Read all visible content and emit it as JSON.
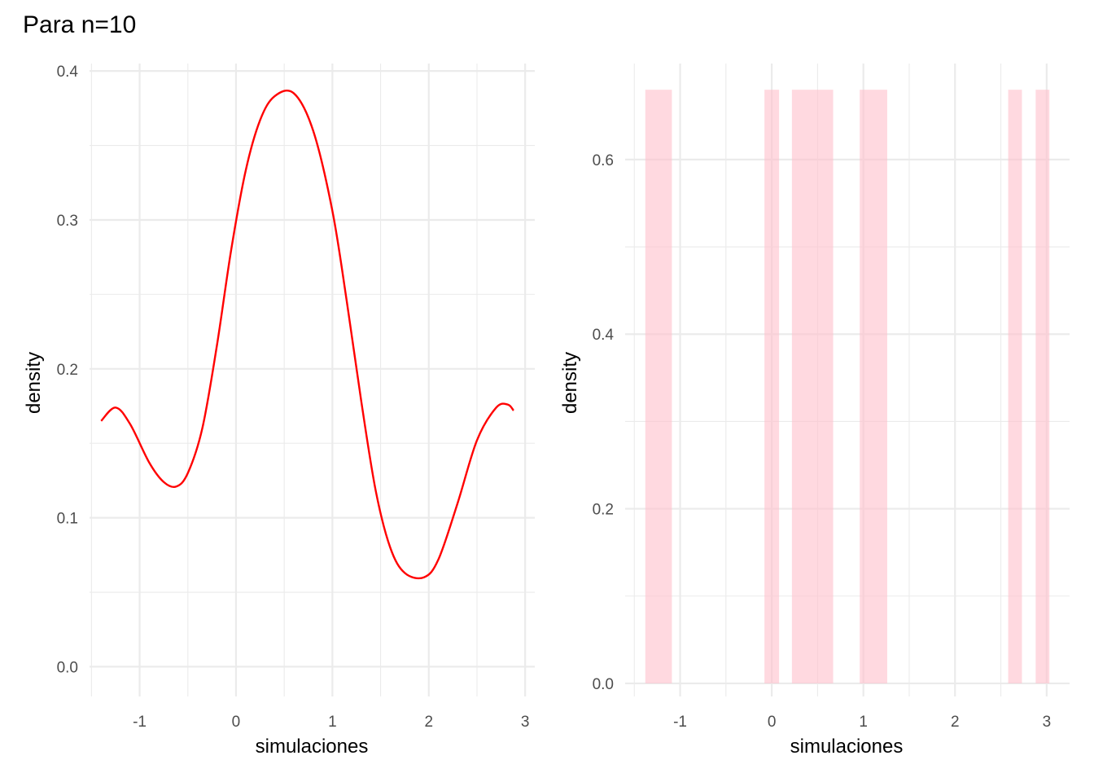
{
  "title": "Para n=10",
  "colors": {
    "density_line": "#ff0000",
    "histogram_fill": "#ffc0cb"
  },
  "chart_data": [
    {
      "type": "line",
      "xlabel": "simulaciones",
      "ylabel": "density",
      "xlim": [
        -1.52,
        3.1
      ],
      "ylim": [
        -0.02,
        0.405
      ],
      "x_major_ticks": [
        -1,
        0,
        1,
        2,
        3
      ],
      "x_minor_ticks": [
        -1.5,
        -0.5,
        0.5,
        1.5,
        2.5
      ],
      "y_major_ticks": [
        0.0,
        0.1,
        0.2,
        0.3,
        0.4
      ],
      "y_minor_ticks": [
        0.05,
        0.15,
        0.25,
        0.35
      ],
      "x_tick_labels": [
        "-1",
        "0",
        "1",
        "2",
        "3"
      ],
      "y_tick_labels": [
        "0.0",
        "0.1",
        "0.2",
        "0.3",
        "0.4"
      ],
      "grid": true,
      "series": [
        {
          "color": "#ff0000",
          "x": [
            -1.4,
            -1.25,
            -1.1,
            -0.9,
            -0.75,
            -0.62,
            -0.5,
            -0.35,
            -0.2,
            -0.05,
            0.1,
            0.25,
            0.4,
            0.6,
            0.8,
            1.0,
            1.15,
            1.3,
            1.45,
            1.6,
            1.75,
            1.95,
            2.1,
            2.3,
            2.5,
            2.7,
            2.82,
            2.88
          ],
          "y": [
            0.165,
            0.174,
            0.163,
            0.137,
            0.124,
            0.121,
            0.13,
            0.16,
            0.215,
            0.28,
            0.333,
            0.367,
            0.383,
            0.385,
            0.36,
            0.306,
            0.245,
            0.178,
            0.118,
            0.08,
            0.063,
            0.06,
            0.072,
            0.11,
            0.152,
            0.174,
            0.176,
            0.172
          ]
        }
      ]
    },
    {
      "type": "bar",
      "xlabel": "simulaciones",
      "ylabel": "density",
      "xlim": [
        -1.6,
        3.25
      ],
      "ylim": [
        -0.015,
        0.71
      ],
      "x_major_ticks": [
        -1,
        0,
        1,
        2,
        3
      ],
      "x_minor_ticks": [
        -1.5,
        -0.5,
        0.5,
        1.5,
        2.5
      ],
      "y_major_ticks": [
        0.0,
        0.2,
        0.4,
        0.6
      ],
      "y_minor_ticks": [
        0.1,
        0.3,
        0.5
      ],
      "x_tick_labels": [
        "-1",
        "0",
        "1",
        "2",
        "3"
      ],
      "y_tick_labels": [
        "0.0",
        "0.2",
        "0.4",
        "0.6"
      ],
      "grid": true,
      "bins": [
        {
          "xmin": -1.38,
          "xmax": -1.09,
          "value": 0.68
        },
        {
          "xmin": -0.08,
          "xmax": 0.08,
          "value": 0.68
        },
        {
          "xmin": 0.22,
          "xmax": 0.67,
          "value": 0.68
        },
        {
          "xmin": 0.96,
          "xmax": 1.26,
          "value": 0.68
        },
        {
          "xmin": 2.58,
          "xmax": 2.73,
          "value": 0.68
        },
        {
          "xmin": 2.88,
          "xmax": 3.03,
          "value": 0.68
        }
      ]
    }
  ]
}
